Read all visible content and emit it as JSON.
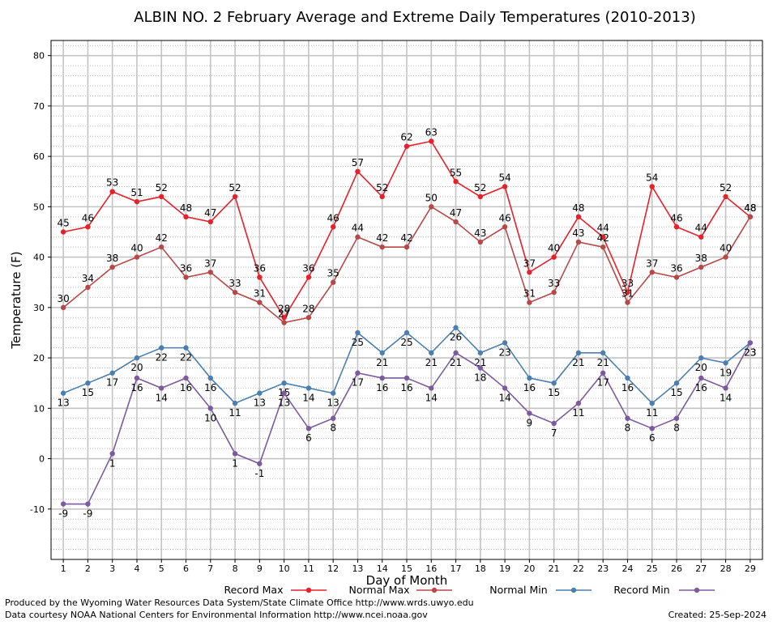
{
  "chart_data": {
    "type": "line",
    "title": "ALBIN NO. 2 February Average and Extreme Daily Temperatures (2010-2013)",
    "xlabel": "Day of Month",
    "ylabel": "Temperature (F)",
    "x": [
      1,
      2,
      3,
      4,
      5,
      6,
      7,
      8,
      9,
      10,
      11,
      12,
      13,
      14,
      15,
      16,
      17,
      18,
      19,
      20,
      21,
      22,
      23,
      24,
      25,
      26,
      27,
      28,
      29
    ],
    "xlim": [
      0.5,
      29.5
    ],
    "ylim": [
      -20,
      83
    ],
    "yticks": [
      -10,
      0,
      10,
      20,
      30,
      40,
      50,
      60,
      70,
      80
    ],
    "grid": true,
    "legend_position": "bottom",
    "series": [
      {
        "name": "Record Max",
        "color": "#e8202a",
        "values": [
          45,
          46,
          53,
          51,
          52,
          48,
          47,
          52,
          36,
          28,
          36,
          46,
          57,
          52,
          62,
          63,
          55,
          52,
          54,
          37,
          40,
          48,
          44,
          33,
          54,
          46,
          44,
          52,
          48
        ]
      },
      {
        "name": "Normal Max",
        "color": "#b84848",
        "values": [
          30,
          34,
          38,
          40,
          42,
          36,
          37,
          33,
          31,
          27,
          28,
          35,
          44,
          42,
          42,
          50,
          47,
          43,
          46,
          31,
          33,
          43,
          42,
          31,
          37,
          36,
          38,
          40,
          48
        ]
      },
      {
        "name": "Normal Min",
        "color": "#4a7fb0",
        "values": [
          13,
          15,
          17,
          20,
          22,
          22,
          16,
          11,
          13,
          15,
          14,
          13,
          25,
          21,
          25,
          21,
          26,
          21,
          23,
          16,
          15,
          21,
          21,
          16,
          11,
          15,
          20,
          19,
          23
        ]
      },
      {
        "name": "Record Min",
        "color": "#7d5a9e",
        "values": [
          -9,
          -9,
          1,
          16,
          14,
          16,
          10,
          1,
          -1,
          13,
          6,
          8,
          17,
          16,
          16,
          14,
          21,
          18,
          14,
          9,
          7,
          11,
          17,
          8,
          6,
          8,
          16,
          14,
          23
        ]
      }
    ]
  },
  "footer": {
    "produced_by": "Produced by the Wyoming Water Resources Data System/State Climate Office http://www.wrds.uwyo.edu",
    "courtesy": "Data courtesy NOAA National Centers for Environmental Information http://www.ncei.noaa.gov",
    "created": "Created:  25-Sep-2024"
  }
}
